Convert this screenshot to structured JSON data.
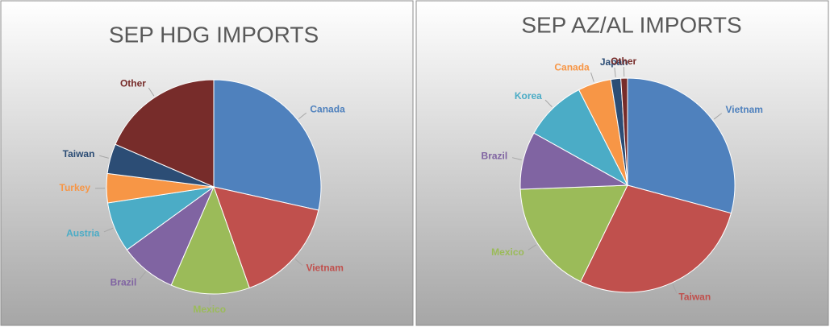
{
  "chart_data": [
    {
      "type": "pie",
      "title": "SEP HDG IMPORTS",
      "categories": [
        "Canada",
        "Vietnam",
        "Mexico",
        "Brazil",
        "Austria",
        "Turkey",
        "Taiwan",
        "Other"
      ],
      "values": [
        28.5,
        16.1,
        11.9,
        8.5,
        7.6,
        4.4,
        4.5,
        18.5
      ],
      "colors": [
        "#4f81bd",
        "#c0504d",
        "#9bbb59",
        "#8064a2",
        "#4bacc6",
        "#f79646",
        "#2c4d75",
        "#772c2a"
      ]
    },
    {
      "type": "pie",
      "title": "SEP AZ/AL IMPORTS",
      "categories": [
        "Vietnam",
        "Taiwan",
        "Mexico",
        "Brazil",
        "Korea",
        "Canada",
        "Japan",
        "Other"
      ],
      "values": [
        29.2,
        28.0,
        17.2,
        8.7,
        9.4,
        5.0,
        1.5,
        1.0
      ],
      "colors": [
        "#4f81bd",
        "#c0504d",
        "#9bbb59",
        "#8064a2",
        "#4bacc6",
        "#f79646",
        "#2c4d75",
        "#772c2a"
      ]
    }
  ]
}
